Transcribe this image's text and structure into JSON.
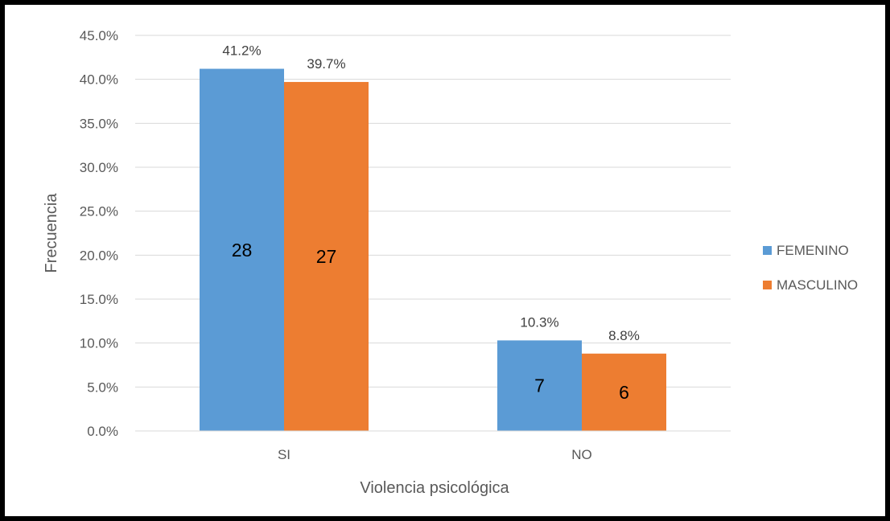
{
  "chart_data": {
    "type": "bar",
    "categories": [
      "SI",
      "NO"
    ],
    "series": [
      {
        "name": "FEMENINO",
        "color": "#5B9BD5",
        "values": [
          41.2,
          10.3
        ],
        "value_labels": [
          "41.2%",
          "10.3%"
        ],
        "counts": [
          28,
          7
        ],
        "count_labels": [
          "28",
          "7"
        ]
      },
      {
        "name": "MASCULINO",
        "color": "#ED7D31",
        "values": [
          39.7,
          8.8
        ],
        "value_labels": [
          "39.7%",
          "8.8%"
        ],
        "counts": [
          27,
          6
        ],
        "count_labels": [
          "27",
          "6"
        ]
      }
    ],
    "xlabel": "Violencia psicológica",
    "ylabel": "Frecuencia",
    "ylim": [
      0,
      45
    ],
    "yticks": [
      0,
      5,
      10,
      15,
      20,
      25,
      30,
      35,
      40,
      45
    ],
    "ytick_labels": [
      "0.0%",
      "5.0%",
      "10.0%",
      "15.0%",
      "20.0%",
      "25.0%",
      "30.0%",
      "35.0%",
      "40.0%",
      "45.0%"
    ],
    "grid": true,
    "legend_position": "right"
  }
}
